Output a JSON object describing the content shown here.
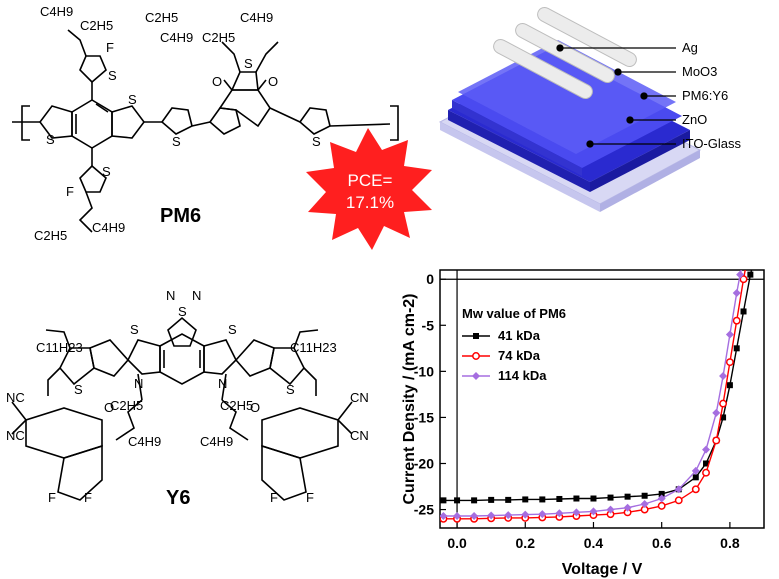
{
  "molecules": {
    "pm6": {
      "name": "PM6",
      "groups": [
        "C4H9",
        "C2H5",
        "C2H5",
        "C4H9",
        "C4H9",
        "C2H5",
        "C2H5",
        "C4H9"
      ],
      "atoms": [
        "F",
        "F",
        "S",
        "S",
        "S",
        "S",
        "S",
        "S",
        "S",
        "O",
        "O"
      ],
      "repeat": "n"
    },
    "y6": {
      "name": "Y6",
      "groups": [
        "C11H23",
        "C11H23",
        "C2H5",
        "C2H5",
        "C4H9",
        "C4H9"
      ],
      "atoms": [
        "N",
        "S",
        "N",
        "S",
        "S",
        "S",
        "S",
        "N",
        "N",
        "O",
        "O",
        "NC",
        "CN",
        "NC",
        "CN",
        "F",
        "F",
        "F",
        "F"
      ]
    }
  },
  "badge": {
    "line1": "PCE=",
    "line2": "17.1%",
    "color": "#ff1f1f"
  },
  "device": {
    "layers": [
      "Ag",
      "MoO3",
      "PM6:Y6",
      "ZnO",
      "ITO-Glass"
    ],
    "colors": {
      "ag": "#e8e8e8",
      "stack": "#3a3adf",
      "glass": "#c9c9f0"
    }
  },
  "chart_data": {
    "type": "line",
    "xlabel": "Voltage / V",
    "ylabel": "Current Density / (mA cm-2)",
    "xlim": [
      -0.05,
      0.9
    ],
    "ylim": [
      -27,
      1
    ],
    "xticks": [
      "0.0",
      "0.2",
      "0.4",
      "0.6",
      "0.8"
    ],
    "yticks": [
      "0",
      "-5",
      "-10",
      "-15",
      "-20",
      "-25"
    ],
    "legend_title": "Mw value of PM6",
    "legend_position": "upper-left",
    "series": [
      {
        "name": "41 kDa",
        "color": "#000000",
        "marker": "square",
        "x": [
          -0.04,
          0.0,
          0.05,
          0.1,
          0.15,
          0.2,
          0.25,
          0.3,
          0.35,
          0.4,
          0.45,
          0.5,
          0.55,
          0.6,
          0.65,
          0.7,
          0.73,
          0.76,
          0.78,
          0.8,
          0.82,
          0.84,
          0.86,
          0.87
        ],
        "y": [
          -24.0,
          -24.0,
          -24.0,
          -23.95,
          -23.95,
          -23.9,
          -23.9,
          -23.85,
          -23.8,
          -23.8,
          -23.7,
          -23.6,
          -23.5,
          -23.3,
          -22.8,
          -21.5,
          -20.0,
          -17.5,
          -15.0,
          -11.5,
          -7.5,
          -3.5,
          0.5,
          2.0
        ]
      },
      {
        "name": "74 kDa",
        "color": "#ff0000",
        "marker": "circle",
        "x": [
          -0.04,
          0.0,
          0.05,
          0.1,
          0.15,
          0.2,
          0.25,
          0.3,
          0.35,
          0.4,
          0.45,
          0.5,
          0.55,
          0.6,
          0.65,
          0.7,
          0.73,
          0.76,
          0.78,
          0.8,
          0.82,
          0.84,
          0.85
        ],
        "y": [
          -26.0,
          -26.0,
          -26.0,
          -25.95,
          -25.9,
          -25.9,
          -25.85,
          -25.8,
          -25.7,
          -25.6,
          -25.5,
          -25.3,
          -25.0,
          -24.6,
          -24.0,
          -22.8,
          -21.0,
          -17.5,
          -13.5,
          -9.0,
          -4.5,
          0.0,
          2.0
        ]
      },
      {
        "name": "114 kDa",
        "color": "#a56ee0",
        "marker": "diamond",
        "x": [
          -0.04,
          0.0,
          0.05,
          0.1,
          0.15,
          0.2,
          0.25,
          0.3,
          0.35,
          0.4,
          0.45,
          0.5,
          0.55,
          0.6,
          0.65,
          0.7,
          0.73,
          0.76,
          0.78,
          0.8,
          0.82,
          0.83,
          0.84
        ],
        "y": [
          -25.7,
          -25.7,
          -25.7,
          -25.65,
          -25.6,
          -25.55,
          -25.5,
          -25.4,
          -25.3,
          -25.2,
          -25.0,
          -24.8,
          -24.4,
          -23.8,
          -22.8,
          -20.8,
          -18.5,
          -14.5,
          -10.5,
          -6.0,
          -1.5,
          0.5,
          2.0
        ]
      }
    ]
  }
}
